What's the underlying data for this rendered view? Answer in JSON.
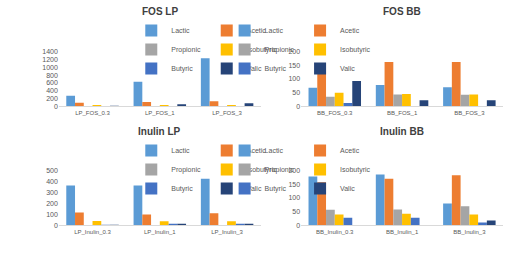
{
  "chart_data": [
    {
      "type": "bar",
      "title": "FOS LP",
      "categories": [
        "LP_FOS_0.3",
        "LP_FOS_1",
        "LP_FOS_3"
      ],
      "series": [
        {
          "name": "Lactic",
          "color": "#5b9bd5",
          "values": [
            270,
            630,
            1230
          ]
        },
        {
          "name": "Acetic",
          "color": "#ed7d31",
          "values": [
            95,
            110,
            130
          ]
        },
        {
          "name": "Propionic",
          "color": "#a5a5a5",
          "values": [
            5,
            5,
            5
          ]
        },
        {
          "name": "Isobutyric",
          "color": "#ffc000",
          "values": [
            35,
            35,
            35
          ]
        },
        {
          "name": "Butyric",
          "color": "#4472c4",
          "values": [
            5,
            5,
            5
          ]
        },
        {
          "name": "Valic",
          "color": "#264478",
          "values": [
            15,
            55,
            80
          ]
        }
      ],
      "ylim": [
        0,
        1400
      ],
      "yticks": [
        0,
        200,
        400,
        600,
        800,
        1000,
        1200,
        1400
      ],
      "grid": false,
      "legend": "top"
    },
    {
      "type": "bar",
      "title": "FOS BB",
      "categories": [
        "BB_FOS_0.3",
        "BB_FOS_1",
        "BB_FOS_3"
      ],
      "series": [
        {
          "name": "Lactic",
          "color": "#5b9bd5",
          "values": [
            68,
            78,
            70
          ]
        },
        {
          "name": "Acetic",
          "color": "#ed7d31",
          "values": [
            158,
            162,
            162
          ]
        },
        {
          "name": "Propionic",
          "color": "#a5a5a5",
          "values": [
            35,
            43,
            42
          ]
        },
        {
          "name": "Isobutyric",
          "color": "#ffc000",
          "values": [
            50,
            45,
            43
          ]
        },
        {
          "name": "Butyric",
          "color": "#4472c4",
          "values": [
            12,
            0,
            0
          ]
        },
        {
          "name": "Valic",
          "color": "#264478",
          "values": [
            93,
            22,
            22
          ]
        }
      ],
      "ylim": [
        0,
        200
      ],
      "yticks": [
        0,
        50,
        100,
        150,
        200
      ],
      "grid": false,
      "legend": "top"
    },
    {
      "type": "bar",
      "title": "Inulin LP",
      "categories": [
        "LP_Inulin_0.3",
        "LP_Inulin_1",
        "LP_Inulin_3"
      ],
      "series": [
        {
          "name": "Lactic",
          "color": "#5b9bd5",
          "values": [
            365,
            365,
            425
          ]
        },
        {
          "name": "Acetic",
          "color": "#ed7d31",
          "values": [
            118,
            98,
            110
          ]
        },
        {
          "name": "Propionic",
          "color": "#a5a5a5",
          "values": [
            0,
            0,
            0
          ]
        },
        {
          "name": "Isobutyric",
          "color": "#ffc000",
          "values": [
            40,
            38,
            38
          ]
        },
        {
          "name": "Butyric",
          "color": "#4472c4",
          "values": [
            5,
            15,
            15
          ]
        },
        {
          "name": "Valic",
          "color": "#264478",
          "values": [
            5,
            15,
            15
          ]
        }
      ],
      "ylim": [
        0,
        500
      ],
      "yticks": [
        0,
        100,
        200,
        300,
        400,
        500
      ],
      "grid": false,
      "legend": "top"
    },
    {
      "type": "bar",
      "title": "Inulin BB",
      "categories": [
        "BB_Inulin_0.3",
        "BB_Inulin_1",
        "BB_Inulin_3"
      ],
      "series": [
        {
          "name": "Lactic",
          "color": "#5b9bd5",
          "values": [
            178,
            186,
            80
          ]
        },
        {
          "name": "Acetic",
          "color": "#ed7d31",
          "values": [
            157,
            170,
            183
          ]
        },
        {
          "name": "Propionic",
          "color": "#a5a5a5",
          "values": [
            57,
            58,
            70
          ]
        },
        {
          "name": "Isobutyric",
          "color": "#ffc000",
          "values": [
            40,
            42,
            40
          ]
        },
        {
          "name": "Butyric",
          "color": "#4472c4",
          "values": [
            28,
            28,
            10
          ]
        },
        {
          "name": "Valic",
          "color": "#264478",
          "values": [
            0,
            0,
            18
          ]
        }
      ],
      "ylim": [
        0,
        200
      ],
      "yticks": [
        0,
        50,
        100,
        150,
        200
      ],
      "grid": false,
      "legend": "top"
    }
  ]
}
